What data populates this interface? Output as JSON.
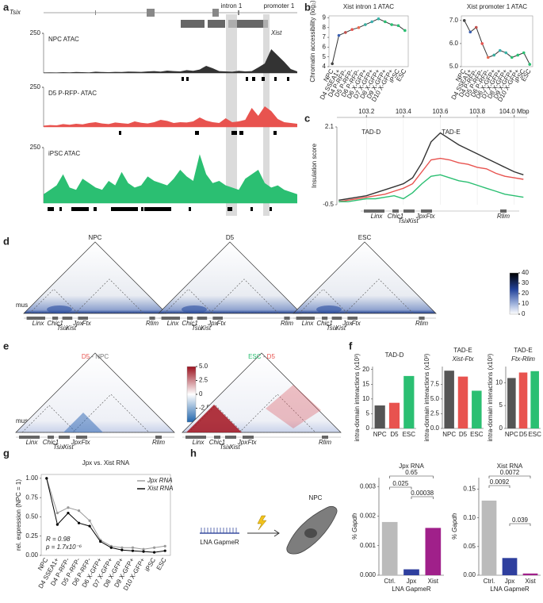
{
  "panel_labels": [
    "a",
    "b",
    "c",
    "d",
    "e",
    "f",
    "g",
    "h"
  ],
  "genes": [
    "Linx",
    "Chic1",
    "Tsix",
    "Xist",
    "Jpx",
    "Ftx",
    "Rlim"
  ],
  "hic": {
    "d_titles": [
      "NPC",
      "D5",
      "ESC"
    ],
    "row_label": "mus",
    "d_colorbar": [
      40,
      30,
      20,
      10,
      0
    ],
    "e_titles": [
      [
        "D5",
        "-",
        "NPC"
      ],
      [
        "ESC",
        "-",
        "D5"
      ]
    ],
    "e_colorbar": [
      {
        "value": 5,
        "label": "5.0"
      },
      2.5,
      0,
      -2.5,
      {
        "value": -5,
        "label": "-5.0"
      }
    ]
  },
  "schematic": {
    "reagent": "LNA GapmeR",
    "cell": "NPC"
  },
  "chart_data": [
    {
      "type": "track",
      "gene_labels": [
        "Tsix",
        "Xist"
      ],
      "region_labels": [
        "intron 1",
        "promoter 1"
      ],
      "ylim": [
        0,
        250
      ],
      "yticks": [
        250
      ],
      "series": [
        {
          "name": "NPC ATAC",
          "color": "#333333",
          "values": [
            3,
            4,
            3,
            5,
            4,
            6,
            5,
            4,
            8,
            6,
            5,
            7,
            6,
            9,
            8,
            7,
            10,
            12,
            9,
            15,
            12,
            10,
            18,
            14,
            22,
            45,
            30,
            12,
            10,
            8,
            14,
            10,
            12,
            35,
            60,
            150,
            110,
            70,
            25,
            10
          ]
        },
        {
          "name": "D5 P-RFP- ATAC",
          "color": "#e8534f",
          "values": [
            8,
            12,
            10,
            18,
            14,
            20,
            16,
            25,
            30,
            22,
            18,
            28,
            24,
            20,
            35,
            26,
            22,
            30,
            45,
            38,
            25,
            30,
            28,
            35,
            60,
            40,
            30,
            25,
            55,
            30,
            35,
            45,
            120,
            70,
            130,
            100,
            50,
            30,
            25,
            20
          ]
        },
        {
          "name": "iPSC ATAC",
          "color": "#2bbf72",
          "values": [
            40,
            60,
            80,
            130,
            70,
            60,
            110,
            90,
            70,
            60,
            100,
            80,
            140,
            90,
            70,
            80,
            120,
            100,
            90,
            80,
            110,
            150,
            120,
            100,
            220,
            130,
            90,
            100,
            80,
            70,
            60,
            110,
            130,
            150,
            90,
            70,
            80,
            60,
            50,
            40
          ]
        }
      ]
    },
    {
      "type": "line",
      "title": "Xist intron 1 ATAC",
      "ylabel": "Chromatin accessibility (log₂)",
      "categories": [
        "NPC",
        "D4 SSEA1+",
        "D4 P-RFP-",
        "D5 P-RFP-",
        "D6 P-RFP-",
        "D6 X-GFP+",
        "D7 X-GFP+",
        "D8 X-GFP+",
        "D9 X-GFP+",
        "D10 X-GFP+",
        "iPSC",
        "ESC"
      ],
      "values": [
        4.3,
        7.2,
        7.5,
        7.8,
        8.0,
        8.3,
        8.6,
        8.9,
        8.6,
        8.3,
        8.2,
        7.7
      ],
      "color": "#333333",
      "point_colors": [
        "#444444",
        "#3a5fb0",
        "#c0504d",
        "#e8534f",
        "#e86a4f",
        "#3aaea0",
        "#3ab0b0",
        "#3ab4a8",
        "#2bbf72",
        "#2bbf72",
        "#2bbf72",
        "#2bbf72"
      ],
      "ylim": [
        4,
        9.2
      ],
      "yticks": [
        4,
        5,
        6,
        7,
        8,
        9
      ]
    },
    {
      "type": "line",
      "title": "Xist promoter 1 ATAC",
      "categories": [
        "NPC",
        "D4 SSEA1+",
        "D4 P-RFP-",
        "D5 P-RFP-",
        "D6 P-RFP-",
        "D6 X-GFP+",
        "D7 X-GFP+",
        "D8 X-GFP+",
        "D9 X-GFP+",
        "D10 X-GFP+",
        "iPSC",
        "ESC"
      ],
      "values": [
        7.0,
        6.5,
        6.7,
        6.0,
        5.4,
        5.5,
        5.7,
        5.6,
        5.4,
        5.5,
        5.6,
        5.1
      ],
      "color": "#333333",
      "point_colors": [
        "#444444",
        "#3a5fb0",
        "#c0504d",
        "#e8534f",
        "#e86a4f",
        "#3aaea0",
        "#3ab0b0",
        "#3ab4a8",
        "#2bbf72",
        "#2bbf72",
        "#2bbf72",
        "#2bbf72"
      ],
      "ylim": [
        5.0,
        7.2
      ],
      "yticks": [
        {
          "value": 5,
          "label": "5.0"
        },
        {
          "value": 6,
          "label": "6.0"
        },
        {
          "value": 7,
          "label": "7.0"
        }
      ]
    },
    {
      "type": "line",
      "ylabel": "Insulation score",
      "region_labels": [
        "TAD-D",
        "TAD-E"
      ],
      "x": [
        103.05,
        103.1,
        103.15,
        103.2,
        103.25,
        103.3,
        103.35,
        103.4,
        103.45,
        103.5,
        103.55,
        103.6,
        103.65,
        103.7,
        103.75,
        103.8,
        103.85,
        103.9,
        103.95,
        104.0,
        104.05
      ],
      "xlim": [
        103.04,
        104.07
      ],
      "xticks": [
        103.2,
        103.4,
        103.6,
        103.8,
        {
          "value": 104,
          "label": "104.0 Mbp"
        }
      ],
      "ylim": [
        -0.5,
        2.1
      ],
      "yticks": [
        -0.5,
        2.1
      ],
      "series": [
        {
          "color": "#333333",
          "values": [
            -0.35,
            -0.3,
            -0.25,
            -0.2,
            -0.1,
            0.0,
            0.1,
            0.2,
            0.4,
            0.9,
            1.6,
            1.9,
            1.7,
            1.5,
            1.35,
            1.2,
            1.05,
            0.9,
            0.75,
            0.6,
            0.5
          ]
        },
        {
          "color": "#e8534f",
          "values": [
            -0.4,
            -0.35,
            -0.3,
            -0.25,
            -0.2,
            -0.15,
            -0.05,
            0.05,
            0.2,
            0.6,
            1.0,
            1.05,
            1.0,
            0.9,
            0.85,
            0.75,
            0.7,
            0.55,
            0.45,
            0.4,
            0.35
          ]
        },
        {
          "color": "#2bbf72",
          "values": [
            -0.4,
            -0.4,
            -0.35,
            -0.3,
            -0.3,
            -0.25,
            -0.2,
            -0.3,
            -0.1,
            0.2,
            0.45,
            0.5,
            0.4,
            0.3,
            0.25,
            0.15,
            0.05,
            -0.05,
            -0.15,
            -0.2,
            -0.25
          ]
        }
      ]
    },
    {
      "type": "bar",
      "title": "TAD-D",
      "ylabel": "intra-domain interactions (x10³)",
      "categories": [
        "NPC",
        "D5",
        "ESC"
      ],
      "values": [
        7.8,
        8.7,
        17.8
      ],
      "colors": [
        "#555555",
        "#e8534f",
        "#2bbf72"
      ],
      "ylim": [
        0,
        21
      ],
      "yticks": [
        0,
        5,
        10,
        15,
        20
      ]
    },
    {
      "type": "bar",
      "title": "TAD-E",
      "subtitle": "Xist-Ftx",
      "ylabel": "intra-domain interactions (x10³)",
      "categories": [
        "NPC",
        "D5",
        "ESC"
      ],
      "values": [
        9.8,
        8.8,
        6.4
      ],
      "colors": [
        "#555555",
        "#e8534f",
        "#2bbf72"
      ],
      "ylim": [
        0,
        10.5
      ],
      "yticks": [
        {
          "value": 0,
          "label": "0.0"
        },
        2.5,
        {
          "value": 5,
          "label": "5.0"
        },
        7.5
      ]
    },
    {
      "type": "bar",
      "title": "TAD-E",
      "subtitle": "Ftx-Rlim",
      "ylabel": "intra-domain interactions (x10³)",
      "categories": [
        "NPC",
        "D5",
        "ESC"
      ],
      "values": [
        11.0,
        12.2,
        12.5
      ],
      "colors": [
        "#555555",
        "#e8534f",
        "#2bbf72"
      ],
      "ylim": [
        0,
        13.5
      ],
      "yticks": [
        0,
        5,
        10
      ]
    },
    {
      "type": "line",
      "title": "Jpx vs. Xist RNA",
      "ylabel": "rel. expression (NPC = 1)",
      "categories": [
        "NPC",
        "D4 SSEA1+",
        "D4 P-RFP-",
        "D5 P-RFP-",
        "D6 P-RFP-",
        "D6 X-GFP+",
        "D7 X-GFP+",
        "D8 X-GFP+",
        "D9 X-GFP+",
        "D10 X-GFP+",
        "iPSC",
        "ESC"
      ],
      "ylim": [
        0,
        1.05
      ],
      "yticks": [
        {
          "value": 0,
          "label": "0.00"
        },
        0.25,
        {
          "value": 0.5,
          "label": "0.50"
        },
        0.75,
        {
          "value": 1,
          "label": "1.00"
        }
      ],
      "legend": "top-right",
      "series": [
        {
          "name": "Jpx RNA",
          "color": "#999999",
          "values": [
            1.0,
            0.55,
            0.62,
            0.58,
            0.45,
            0.2,
            0.12,
            0.1,
            0.1,
            0.08,
            0.1,
            0.12
          ]
        },
        {
          "name": "Xist RNA",
          "color": "#000000",
          "values": [
            1.0,
            0.4,
            0.55,
            0.42,
            0.38,
            0.18,
            0.1,
            0.07,
            0.06,
            0.05,
            0.04,
            0.06
          ]
        }
      ],
      "annotations": [
        "R = 0.98",
        "p = 1.7x10⁻⁶"
      ]
    },
    {
      "type": "bar",
      "title": "Jpx RNA",
      "ylabel": "% Gapdh",
      "xlabel": "LNA GapmeR",
      "categories": [
        "Ctrl.",
        "Jpx",
        "Xist"
      ],
      "values": [
        0.0018,
        0.0002,
        0.0016
      ],
      "colors": [
        "#bbbbbb",
        "#2f3f9e",
        "#a0208a"
      ],
      "ylim": [
        0,
        0.0033
      ],
      "yticks": [
        {
          "value": 0,
          "label": "0.000"
        },
        {
          "value": 0.001,
          "label": "0.001"
        },
        {
          "value": 0.002,
          "label": "0.002"
        },
        {
          "value": 0.003,
          "label": "0.003"
        }
      ],
      "annotations": [
        "0.025",
        "0.65",
        "0.00038"
      ]
    },
    {
      "type": "bar",
      "title": "Xist RNA",
      "ylabel": "% Gapdh",
      "xlabel": "LNA GapmeR",
      "categories": [
        "Ctrl.",
        "Jpx",
        "Xist"
      ],
      "values": [
        0.13,
        0.03,
        0.003
      ],
      "colors": [
        "#bbbbbb",
        "#2f3f9e",
        "#a0208a"
      ],
      "ylim": [
        0,
        0.17
      ],
      "yticks": [
        {
          "value": 0,
          "label": "0.00"
        },
        0.05,
        {
          "value": 0.1,
          "label": "0.10"
        },
        0.15
      ],
      "annotations": [
        "0.0092",
        "0.0072",
        "0.039"
      ]
    }
  ]
}
